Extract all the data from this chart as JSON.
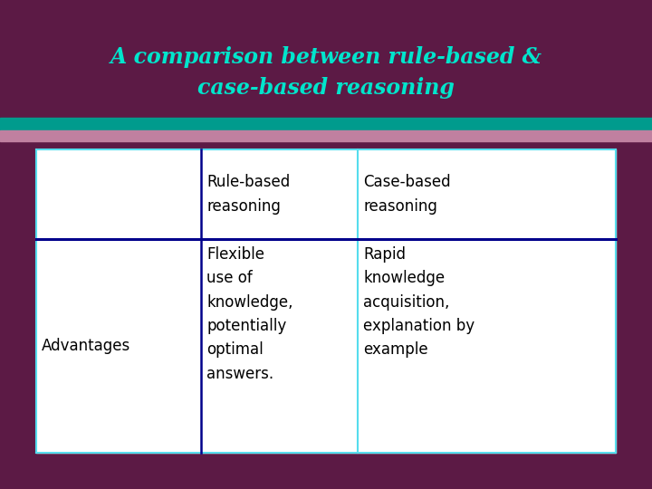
{
  "title_line1": "A comparison between rule-based &",
  "title_line2": "case-based reasoning",
  "title_color": "#00E5CC",
  "title_fontsize": 17,
  "background_color": "#5C1A45",
  "header_bar_color": "#009B8D",
  "pink_bar_color": "#C080A0",
  "table_bg": "#FFFFFF",
  "table_border_color": "#55DDEE",
  "table_inner_line_color": "#00008B",
  "col1_header": "Rule-based\nreasoning",
  "col2_header": "Case-based\nreasoning",
  "row1_col0": "Advantages",
  "row1_col1": "Flexible\nuse of\nknowledge,\npotentially\noptimal\nanswers.",
  "row1_col2": "Rapid\nknowledge\nacquisition,\nexplanation by\nexample",
  "table_text_color": "#000000",
  "table_text_fontsize": 12,
  "header_text_fontsize": 12
}
